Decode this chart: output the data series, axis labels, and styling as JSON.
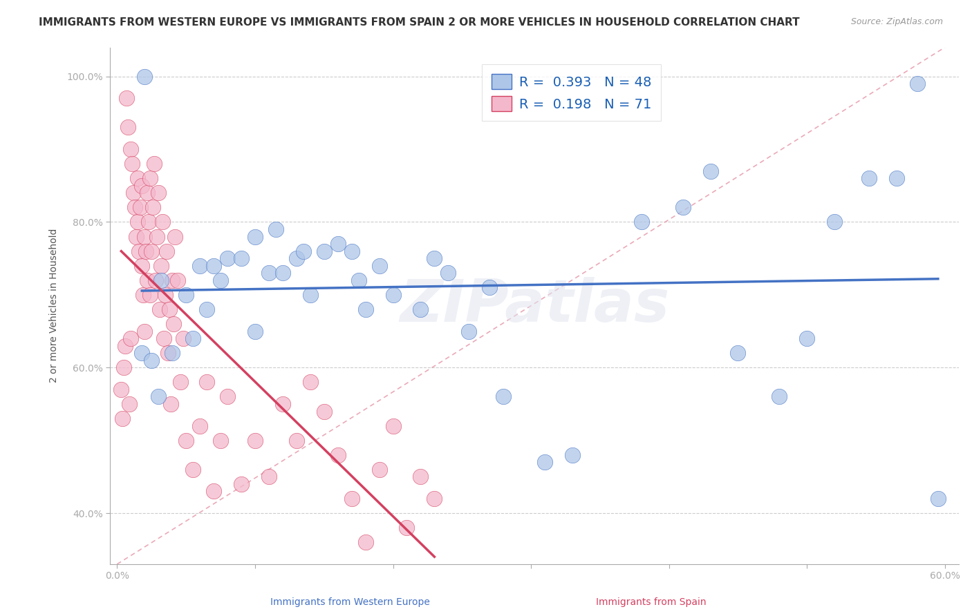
{
  "title": "IMMIGRANTS FROM WESTERN EUROPE VS IMMIGRANTS FROM SPAIN 2 OR MORE VEHICLES IN HOUSEHOLD CORRELATION CHART",
  "source": "Source: ZipAtlas.com",
  "xlabel_blue": "Immigrants from Western Europe",
  "xlabel_pink": "Immigrants from Spain",
  "ylabel": "2 or more Vehicles in Household",
  "xlim": [
    -0.005,
    0.61
  ],
  "ylim": [
    0.33,
    1.04
  ],
  "xticks": [
    0.0,
    0.1,
    0.2,
    0.3,
    0.4,
    0.5,
    0.6
  ],
  "yticks": [
    0.4,
    0.6,
    0.8,
    1.0
  ],
  "ytick_labels": [
    "40.0%",
    "60.0%",
    "80.0%",
    "100.0%"
  ],
  "R_blue": 0.393,
  "N_blue": 48,
  "R_pink": 0.198,
  "N_pink": 71,
  "blue_color": "#aec6e8",
  "pink_color": "#f4b8cc",
  "trend_blue": "#4472c4",
  "trend_pink": "#d44060",
  "diag_color": "#e8a0b0",
  "watermark": "ZIPatlas",
  "background_color": "#ffffff",
  "grid_color": "#cccccc",
  "title_fontsize": 11,
  "axis_fontsize": 10,
  "legend_fontsize": 14,
  "blue_x": [
    0.018,
    0.02,
    0.025,
    0.03,
    0.032,
    0.04,
    0.05,
    0.055,
    0.06,
    0.065,
    0.07,
    0.075,
    0.08,
    0.09,
    0.1,
    0.1,
    0.11,
    0.115,
    0.12,
    0.13,
    0.135,
    0.14,
    0.15,
    0.16,
    0.17,
    0.175,
    0.18,
    0.19,
    0.2,
    0.22,
    0.23,
    0.24,
    0.255,
    0.27,
    0.28,
    0.31,
    0.33,
    0.38,
    0.41,
    0.43,
    0.45,
    0.48,
    0.5,
    0.52,
    0.545,
    0.565,
    0.58,
    0.595
  ],
  "blue_y": [
    0.62,
    1.0,
    0.61,
    0.56,
    0.72,
    0.62,
    0.7,
    0.64,
    0.74,
    0.68,
    0.74,
    0.72,
    0.75,
    0.75,
    0.65,
    0.78,
    0.73,
    0.79,
    0.73,
    0.75,
    0.76,
    0.7,
    0.76,
    0.77,
    0.76,
    0.72,
    0.68,
    0.74,
    0.7,
    0.68,
    0.75,
    0.73,
    0.65,
    0.71,
    0.56,
    0.47,
    0.48,
    0.8,
    0.82,
    0.87,
    0.62,
    0.56,
    0.64,
    0.8,
    0.86,
    0.86,
    0.99,
    0.42
  ],
  "pink_x": [
    0.003,
    0.004,
    0.005,
    0.006,
    0.007,
    0.008,
    0.009,
    0.01,
    0.01,
    0.011,
    0.012,
    0.013,
    0.014,
    0.015,
    0.015,
    0.016,
    0.017,
    0.018,
    0.018,
    0.019,
    0.02,
    0.02,
    0.021,
    0.022,
    0.022,
    0.023,
    0.024,
    0.024,
    0.025,
    0.026,
    0.027,
    0.028,
    0.029,
    0.03,
    0.031,
    0.032,
    0.033,
    0.034,
    0.035,
    0.036,
    0.037,
    0.038,
    0.039,
    0.04,
    0.041,
    0.042,
    0.044,
    0.046,
    0.048,
    0.05,
    0.055,
    0.06,
    0.065,
    0.07,
    0.075,
    0.08,
    0.09,
    0.1,
    0.11,
    0.12,
    0.13,
    0.14,
    0.15,
    0.16,
    0.17,
    0.18,
    0.19,
    0.2,
    0.21,
    0.22,
    0.23
  ],
  "pink_y": [
    0.57,
    0.53,
    0.6,
    0.63,
    0.97,
    0.93,
    0.55,
    0.64,
    0.9,
    0.88,
    0.84,
    0.82,
    0.78,
    0.86,
    0.8,
    0.76,
    0.82,
    0.85,
    0.74,
    0.7,
    0.78,
    0.65,
    0.76,
    0.72,
    0.84,
    0.8,
    0.86,
    0.7,
    0.76,
    0.82,
    0.88,
    0.72,
    0.78,
    0.84,
    0.68,
    0.74,
    0.8,
    0.64,
    0.7,
    0.76,
    0.62,
    0.68,
    0.55,
    0.72,
    0.66,
    0.78,
    0.72,
    0.58,
    0.64,
    0.5,
    0.46,
    0.52,
    0.58,
    0.43,
    0.5,
    0.56,
    0.44,
    0.5,
    0.45,
    0.55,
    0.5,
    0.58,
    0.54,
    0.48,
    0.42,
    0.36,
    0.46,
    0.52,
    0.38,
    0.45,
    0.42
  ]
}
